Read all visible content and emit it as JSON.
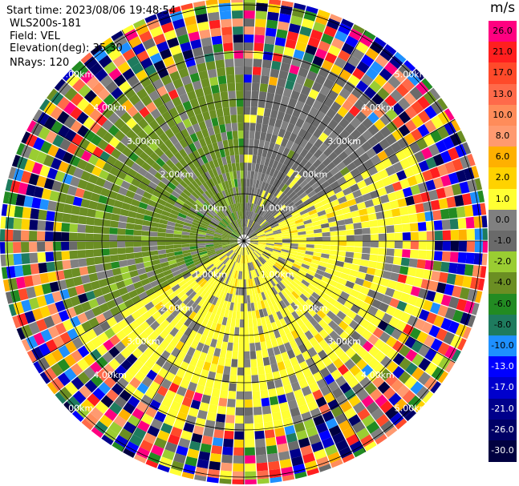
{
  "header": {
    "start_time": "Start time: 2023/08/06 19:48:54",
    "instrument": "WLS200s-181",
    "field": "Field: VEL",
    "elevation": "Elevation(deg): 35.30",
    "nrays": "NRays: 120"
  },
  "colorbar": {
    "unit": "m/s",
    "bins": [
      {
        "label": "26.0",
        "color": "#ff0080"
      },
      {
        "label": "21.0",
        "color": "#ff1f1f"
      },
      {
        "label": "17.0",
        "color": "#ff4a2a"
      },
      {
        "label": "13.0",
        "color": "#ff6a4a"
      },
      {
        "label": "10.0",
        "color": "#ff8c5a"
      },
      {
        "label": "8.0",
        "color": "#ff9a70"
      },
      {
        "label": "6.0",
        "color": "#ffb000"
      },
      {
        "label": "2.0",
        "color": "#ffd200"
      },
      {
        "label": "1.0",
        "color": "#ffff33"
      },
      {
        "label": "0.0",
        "color": "#808080"
      },
      {
        "label": "-1.0",
        "color": "#6a6a6a"
      },
      {
        "label": "-2.0",
        "color": "#9acd32"
      },
      {
        "label": "-4.0",
        "color": "#6b8e23"
      },
      {
        "label": "-6.0",
        "color": "#228b22"
      },
      {
        "label": "-8.0",
        "color": "#1e7b5e"
      },
      {
        "label": "-10.0",
        "color": "#1e90ff"
      },
      {
        "label": "-13.0",
        "color": "#0000ff"
      },
      {
        "label": "-17.0",
        "color": "#0000cd"
      },
      {
        "label": "-21.0",
        "color": "#00008b"
      },
      {
        "label": "-26.0",
        "color": "#000066"
      },
      {
        "label": "-30.0",
        "color": "#000040"
      }
    ]
  },
  "chart_data": {
    "type": "heatmap",
    "projection": "polar PPI",
    "field": "VEL",
    "unit": "m/s",
    "range_rings_km": [
      1,
      2,
      3,
      4,
      5
    ],
    "range_ring_labels": [
      "1.00km",
      "2.00km",
      "3.00km",
      "4.00km",
      "5.00km"
    ],
    "radial_lines_deg": [
      0,
      30,
      60,
      90,
      120,
      150
    ],
    "n_rays": 120,
    "sector_summary": [
      {
        "azimuth_from_deg": 270,
        "azimuth_to_deg": 360,
        "dominant_value_ms": -4.0
      },
      {
        "azimuth_from_deg": 0,
        "azimuth_to_deg": 60,
        "dominant_value_ms": -1.0
      },
      {
        "azimuth_from_deg": 60,
        "azimuth_to_deg": 180,
        "dominant_value_ms": 1.0
      },
      {
        "azimuth_from_deg": 180,
        "azimuth_to_deg": 240,
        "dominant_value_ms": 1.0
      },
      {
        "azimuth_from_deg": 240,
        "azimuth_to_deg": 270,
        "dominant_value_ms": -4.0
      }
    ]
  }
}
